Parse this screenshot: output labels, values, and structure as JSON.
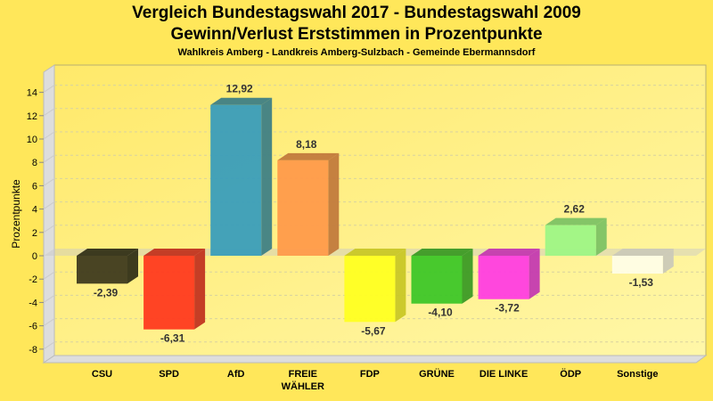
{
  "chart_data": {
    "type": "bar",
    "title": "Vergleich Bundestagswahl 2017 - Bundestagswahl 2009",
    "subtitle": "Gewinn/Verlust Erststimmen in Prozentpunkte",
    "subsubtitle": "Wahlkreis Amberg - Landkreis Amberg-Sulzbach - Gemeinde Ebermannsdorf",
    "xlabel": "",
    "ylabel": "Prozentpunkte",
    "ylim": [
      -9,
      15
    ],
    "yticks": [
      -8,
      -6,
      -4,
      -2,
      0,
      2,
      4,
      6,
      8,
      10,
      12,
      14
    ],
    "grid": true,
    "legend": "none",
    "categories": [
      "CSU",
      "SPD",
      "AfD",
      "FREIE WÄHLER",
      "FDP",
      "GRÜNE",
      "DIE LINKE",
      "ÖDP",
      "Sonstige"
    ],
    "category_lines": [
      [
        "CSU"
      ],
      [
        "SPD"
      ],
      [
        "AfD"
      ],
      [
        "FREIE",
        "WÄHLER"
      ],
      [
        "FDP"
      ],
      [
        "GRÜNE"
      ],
      [
        "DIE LINKE"
      ],
      [
        "ÖDP"
      ],
      [
        "Sonstige"
      ]
    ],
    "values": [
      -2.39,
      -6.31,
      12.92,
      8.18,
      -5.67,
      -4.1,
      -3.72,
      2.62,
      -1.53
    ],
    "value_labels": [
      "-2,39",
      "-6,31",
      "12,92",
      "8,18",
      "-5,67",
      "-4,10",
      "-3,72",
      "2,62",
      "-1,53"
    ],
    "colors": [
      "#3F3A1E",
      "#FF3A1F",
      "#3A9DBA",
      "#FF9A4A",
      "#FFFF22",
      "#3EC628",
      "#FF3DE0",
      "#9EF585",
      "#FFFDE6"
    ],
    "side_colors": [
      "#333018",
      "#C23420",
      "#3F7F85",
      "#C27A3C",
      "#C9C726",
      "#3C9A25",
      "#C43AB0",
      "#7DC264",
      "#CBC9B8"
    ]
  }
}
